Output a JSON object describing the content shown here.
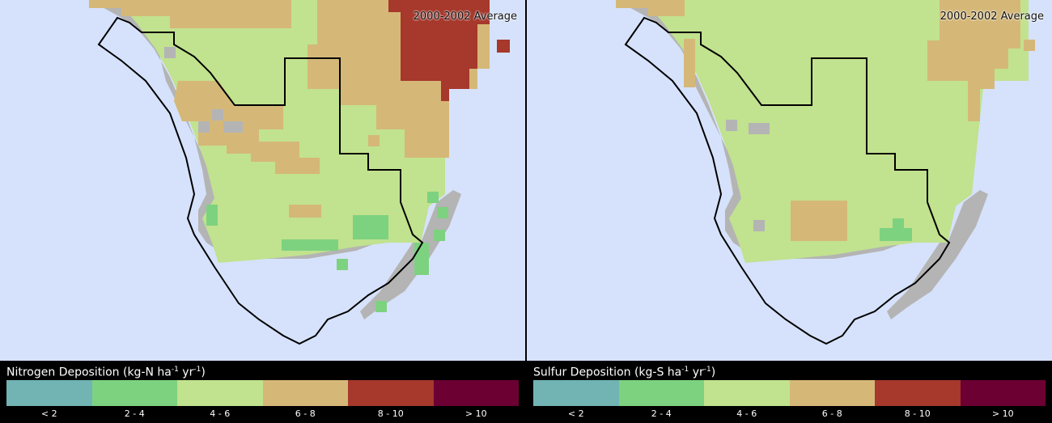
{
  "panels": [
    {
      "id": "nitrogen",
      "period": "2000-2002 Average",
      "legend_title_pre": "Nitrogen Deposition (kg-N ha",
      "legend_title_mid": " yr",
      "legend_title_post": ")",
      "superscript": "-1"
    },
    {
      "id": "sulfur",
      "period": "2000-2002 Average",
      "legend_title_pre": "Sulfur Deposition (kg-S ha",
      "legend_title_mid": " yr",
      "legend_title_post": ")",
      "superscript": "-1"
    }
  ],
  "legend": {
    "bins": [
      {
        "label": "< 2",
        "color": "#72b3b4"
      },
      {
        "label": "2 - 4",
        "color": "#7dd280"
      },
      {
        "label": "4 - 6",
        "color": "#c1e28e"
      },
      {
        "label": "6 - 8",
        "color": "#d5b878"
      },
      {
        "label": "8 - 10",
        "color": "#a6382c"
      },
      {
        "label": "> 10",
        "color": "#6c0033"
      }
    ]
  },
  "colors": {
    "water": "#d6e2fb",
    "no_data": "#b4b4b4",
    "boundary": "#000000"
  }
}
